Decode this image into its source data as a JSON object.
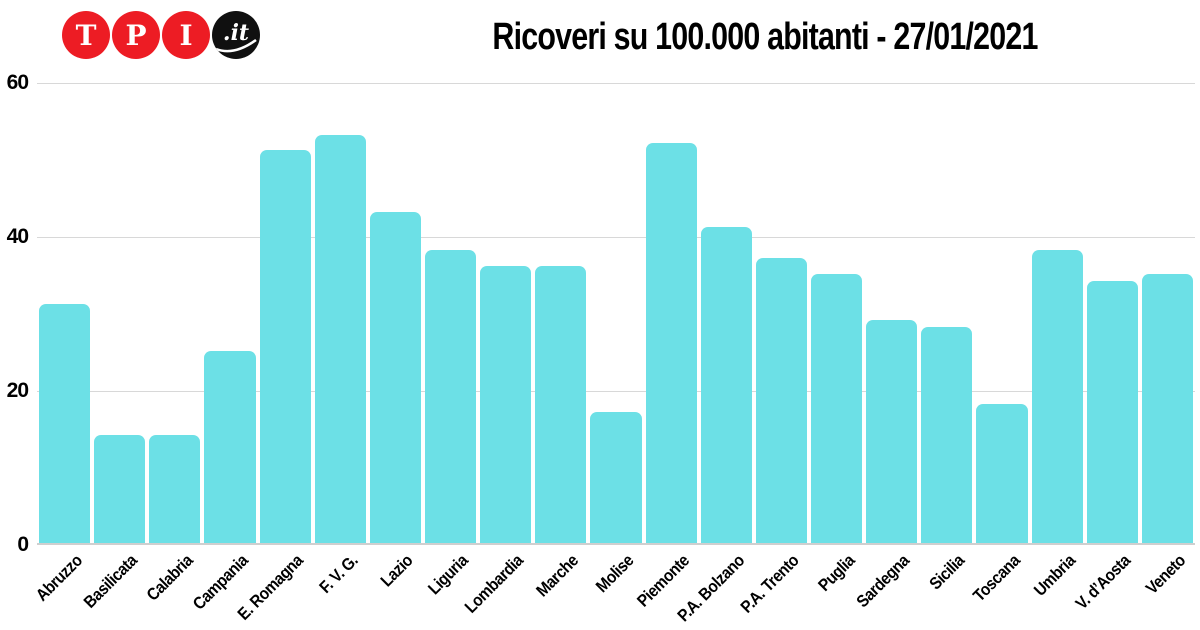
{
  "logo": {
    "letters": [
      "T",
      "P",
      "I"
    ],
    "suffix_label": ".it",
    "circle_color": "#ED1C24",
    "suffix_bg": "#101010"
  },
  "title": "Ricoveri su 100.000 abitanti - 27/01/2021",
  "chart_data": {
    "type": "bar",
    "title": "Ricoveri su 100.000 abitanti - 27/01/2021",
    "categories": [
      "Abruzzo",
      "Basilicata",
      "Calabria",
      "Campania",
      "E. Romagna",
      "F. V. G.",
      "Lazio",
      "Liguria",
      "Lombardia",
      "Marche",
      "Molise",
      "Piemonte",
      "P.A. Bolzano",
      "P.A. Trento",
      "Puglia",
      "Sardegna",
      "Sicilia",
      "Toscana",
      "Umbria",
      "V. d’Aosta",
      "Veneto"
    ],
    "values": [
      31,
      14,
      14,
      25,
      51,
      53,
      43,
      38,
      36,
      36,
      17,
      52,
      41,
      37,
      35,
      29,
      28,
      18,
      38,
      34,
      35
    ],
    "xlabel": "",
    "ylabel": "",
    "ylim": [
      0,
      60
    ],
    "yticks": [
      0,
      20,
      40,
      60
    ],
    "bar_color": "#6CE0E6",
    "gridline_color": "#d8d8d8",
    "grid": true,
    "legend": false
  }
}
